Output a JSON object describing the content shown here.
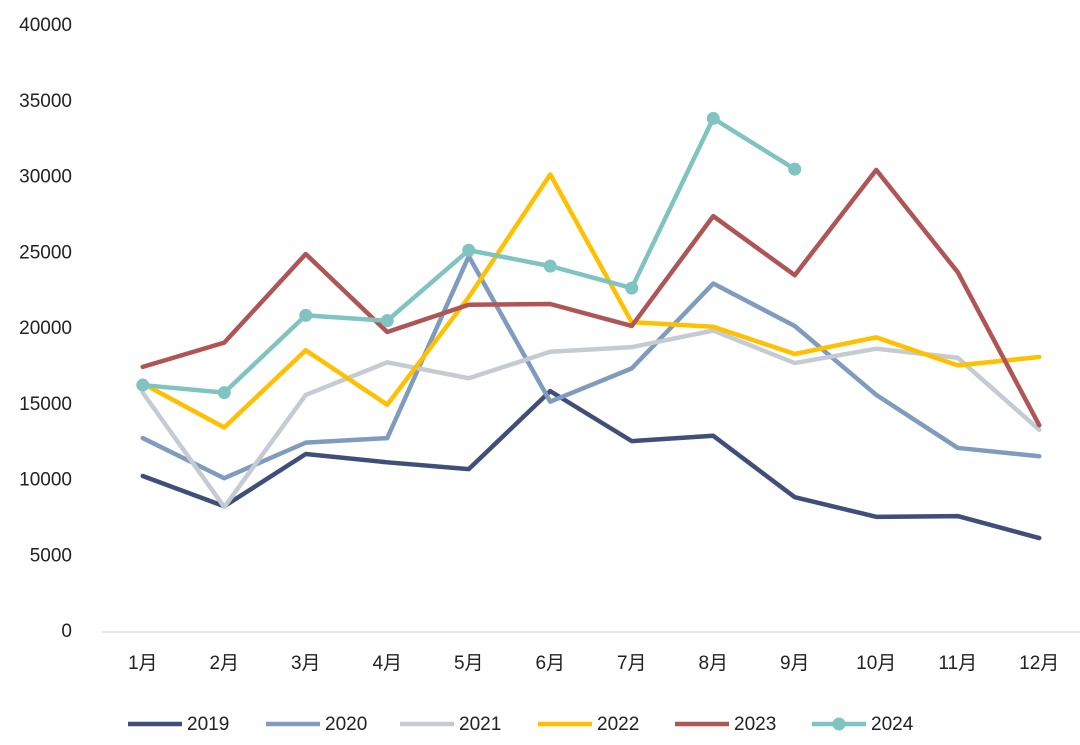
{
  "chart_data": {
    "type": "line",
    "categories": [
      "1月",
      "2月",
      "3月",
      "4月",
      "5月",
      "6月",
      "7月",
      "8月",
      "9月",
      "10月",
      "11月",
      "12月"
    ],
    "series": [
      {
        "name": "2019",
        "color": "#3f4f7a",
        "values": [
          10300,
          8300,
          11750,
          11200,
          10750,
          15900,
          12600,
          12950,
          8900,
          7600,
          7650,
          6200
        ]
      },
      {
        "name": "2020",
        "color": "#7f9bbd",
        "values": [
          12800,
          10150,
          12500,
          12800,
          24800,
          15200,
          17400,
          23000,
          20200,
          15650,
          12150,
          11600
        ]
      },
      {
        "name": "2021",
        "color": "#c5cbd3",
        "values": [
          15800,
          8250,
          15650,
          17800,
          16750,
          18500,
          18800,
          19900,
          17750,
          18700,
          18100,
          13350
        ]
      },
      {
        "name": "2022",
        "color": "#ffc000",
        "values": [
          16400,
          13500,
          18600,
          15000,
          22100,
          30200,
          20450,
          20150,
          18350,
          19450,
          17600,
          18150
        ]
      },
      {
        "name": "2023",
        "color": "#b05556",
        "values": [
          17500,
          19100,
          24950,
          19800,
          21600,
          21650,
          20200,
          27450,
          23550,
          30500,
          23750,
          13650
        ]
      },
      {
        "name": "2024",
        "color": "#7fc4c0",
        "marker": "circle",
        "values": [
          16300,
          15800,
          20900,
          20550,
          25200,
          24150,
          22700,
          33900,
          30550,
          null,
          null,
          null
        ]
      }
    ],
    "ylim": [
      0,
      40000
    ],
    "yticks": [
      0,
      5000,
      10000,
      15000,
      20000,
      25000,
      30000,
      35000,
      40000
    ],
    "grid": false,
    "legend": "bottom"
  }
}
